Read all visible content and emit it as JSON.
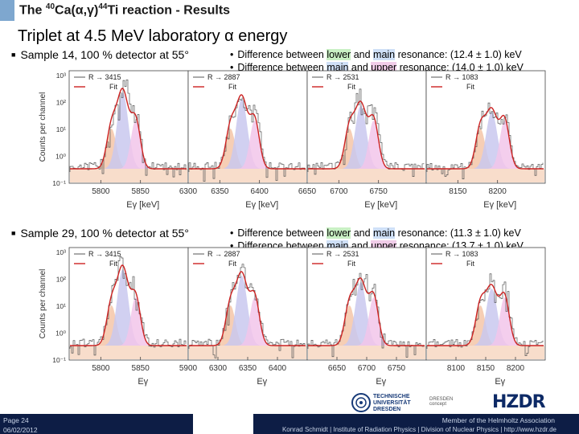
{
  "header": {
    "title_pre": "The ",
    "title_sup1": "40",
    "title_mid": "Ca(",
    "title_greek": "α,γ",
    "title_post": ")",
    "title_sup2": "44",
    "title_tail": "Ti reaction - Results",
    "subtitle": "Triplet at 4.5 MeV laboratory α energy"
  },
  "samples": [
    {
      "label": "Sample 14, 100 % detector at 55°",
      "notes": [
        {
          "pre": "Difference between ",
          "a": "lower",
          "mid": " and ",
          "b": "main",
          "post": " resonance: (12.4 ± 1.0) keV"
        },
        {
          "pre": "Difference between ",
          "a": "main",
          "mid": " and ",
          "b": "upper",
          "post": " resonance: (14.0 ± 1.0) keV"
        }
      ],
      "xlabel": "Eγ [keV]",
      "panels": [
        {
          "legend_r": "R → 3415",
          "legend_fit": "Fit",
          "ticks": [
            "5800",
            "5850"
          ],
          "end_tick": "6300"
        },
        {
          "legend_r": "R → 2887",
          "legend_fit": "Fit",
          "ticks": [
            "6350",
            "6400"
          ],
          "end_tick": "6650"
        },
        {
          "legend_r": "R → 2531",
          "legend_fit": "Fit",
          "ticks": [
            "6700",
            "6750"
          ],
          "end_tick": ""
        },
        {
          "legend_r": "R → 1083",
          "legend_fit": "Fit",
          "ticks": [
            "8150",
            "8200"
          ],
          "end_tick": ""
        }
      ]
    },
    {
      "label": "Sample 29, 100 % detector at 55°",
      "notes": [
        {
          "pre": "Difference between ",
          "a": "lower",
          "mid": " and ",
          "b": "main",
          "post": " resonance: (11.3 ± 1.0) keV"
        },
        {
          "pre": "Difference between ",
          "a": "main",
          "mid": " and ",
          "b": "upper",
          "post": " resonance: (13.7 ± 1.0) keV"
        }
      ],
      "xlabel": "Eγ",
      "panels": [
        {
          "legend_r": "R → 3415",
          "legend_fit": "Fit",
          "ticks": [
            "5800",
            "5850"
          ],
          "end_tick": "5900"
        },
        {
          "legend_r": "R → 2887",
          "legend_fit": "Fit",
          "ticks": [
            "6300",
            "6350",
            "6400"
          ],
          "end_tick": ""
        },
        {
          "legend_r": "R → 2531",
          "legend_fit": "Fit",
          "ticks": [
            "6650",
            "6700",
            "6750"
          ],
          "end_tick": ""
        },
        {
          "legend_r": "R → 1083",
          "legend_fit": "Fit",
          "ticks": [
            "8100",
            "8150",
            "8200"
          ],
          "end_tick": ""
        }
      ]
    }
  ],
  "yaxis": {
    "label": "Counts per channel",
    "ticks": [
      "10³",
      "10²",
      "10¹",
      "10⁰",
      "10⁻¹"
    ]
  },
  "footer": {
    "page": "Page 24",
    "date": "06/02/2012",
    "member": "Member of the Helmholtz Association",
    "affiliation": "Konrad Schmidt | Institute of Radiation Physics | Division of Nuclear Physics | http://www.hzdr.de",
    "logo_tu": "TECHNISCHE UNIVERSITÄT DRESDEN",
    "logo_dc": "DRESDEN concept",
    "logo_hzdr": "HZDR"
  },
  "colors": {
    "hist": "#555555",
    "fit": "#cc2222",
    "fill_lower": "#f4c6a8",
    "fill_main": "#c9c8ef",
    "fill_upper": "#f2c6ea"
  }
}
